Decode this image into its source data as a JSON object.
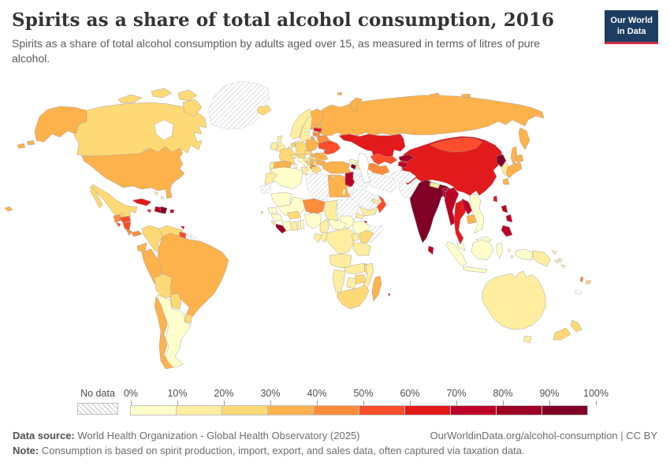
{
  "header": {
    "title": "Spirits as a share of total alcohol consumption, 2016",
    "subtitle": "Spirits as a share of total alcohol consumption by adults aged over 15, as measured in terms of litres of pure alcohol."
  },
  "logo": {
    "line1": "Our World",
    "line2": "in Data"
  },
  "legend": {
    "no_data_label": "No data",
    "tick_labels": [
      "0%",
      "10%",
      "20%",
      "30%",
      "40%",
      "50%",
      "60%",
      "70%",
      "80%",
      "90%",
      "100%"
    ]
  },
  "footer": {
    "data_source_label": "Data source:",
    "data_source_text": " World Health Organization - Global Health Observatory (2025)",
    "link_text": "OurWorldinData.org/alcohol-consumption | CC BY",
    "note_label": "Note:",
    "note_text": " Consumption is based on spirit production, import, export, and sales data, often captured via taxation data."
  },
  "chart_data": {
    "type": "choropleth",
    "title": "Spirits as a share of total alcohol consumption, 2016",
    "unit": "%",
    "bins": [
      0,
      10,
      20,
      30,
      40,
      50,
      60,
      70,
      80,
      90,
      100
    ],
    "colors": [
      "#ffffcc",
      "#ffeda0",
      "#fed976",
      "#feb24c",
      "#fd8d3c",
      "#fc4e2a",
      "#e31a1c",
      "#bd0026",
      "#9e0025",
      "#800026"
    ],
    "no_data_style": "diagonal-hatch",
    "values": {
      "canada": 25,
      "united-states": 35,
      "greenland": null,
      "mexico": 25,
      "guatemala": 45,
      "belize": 25,
      "honduras": 55,
      "el-salvador": 55,
      "nicaragua": 55,
      "costa-rica": 45,
      "panama": 45,
      "cuba": 65,
      "jamaica": 65,
      "haiti": 75,
      "dominican-republic": 95,
      "puerto-rico": 75,
      "bahamas": 15,
      "trinidad-and-tobago": 65,
      "colombia": 25,
      "venezuela": 25,
      "guyana": 55,
      "suriname": null,
      "french-guiana": null,
      "ecuador": 35,
      "peru": 35,
      "brazil": 35,
      "bolivia": 25,
      "paraguay": 25,
      "uruguay": 25,
      "argentina": 5,
      "chile": 35,
      "iceland": 25,
      "united-kingdom": 15,
      "ireland": 15,
      "norway": 15,
      "sweden": 15,
      "finland": 35,
      "denmark": 15,
      "germany": 25,
      "netherlands": 25,
      "belgium": 15,
      "france": 25,
      "spain": 35,
      "portugal": 15,
      "italy": 5,
      "switzerland": 15,
      "austria": 25,
      "czechia": 25,
      "poland": 35,
      "slovakia": 35,
      "hungary": 25,
      "romania": 35,
      "bulgaria": 35,
      "serbia": 35,
      "croatia": 15,
      "bosnia-and-herzegovina": 25,
      "albania": 45,
      "north-macedonia": 45,
      "greece": 25,
      "moldova": 55,
      "ukraine": 55,
      "belarus": 45,
      "estonia": 35,
      "latvia": 65,
      "lithuania": 45,
      "russia": 35,
      "turkey": 35,
      "georgia": 5,
      "armenia": 95,
      "azerbaijan": 15,
      "cyprus": 15,
      "syria": 75,
      "israel": 15,
      "jordan": null,
      "iraq": null,
      "saudi-arabia": null,
      "yemen": 15,
      "oman": 55,
      "united-arab-emirates": 15,
      "iran": null,
      "afghanistan": null,
      "pakistan": null,
      "kazakhstan": 65,
      "uzbekistan": 55,
      "turkmenistan": 45,
      "kyrgyzstan": 85,
      "tajikistan": 75,
      "mongolia": 55,
      "china": 65,
      "north-korea": 95,
      "south-korea": 15,
      "japan": 35,
      "taiwan": 65,
      "india": 95,
      "nepal": 15,
      "bhutan": 75,
      "bangladesh": 85,
      "sri-lanka": 75,
      "myanmar": 75,
      "thailand": 65,
      "laos": 75,
      "cambodia": 35,
      "vietnam": 5,
      "malaysia": 5,
      "indonesia": 5,
      "philippines": 75,
      "papua-new-guinea": 15,
      "australia": 15,
      "new-zealand": 25,
      "fiji": 25,
      "vanuatu": 45,
      "solomon-islands": 15,
      "new-caledonia": null,
      "morocco": 15,
      "western-sahara": null,
      "algeria": 5,
      "tunisia": 15,
      "libya": null,
      "egypt": 35,
      "mauritania": 5,
      "mali": 5,
      "senegal": 5,
      "guinea": 5,
      "sierra-leone": 15,
      "liberia": 85,
      "cote-divoire": 5,
      "ghana": 15,
      "togo": 5,
      "benin": 5,
      "burkina-faso": 25,
      "niger": 45,
      "chad": 15,
      "nigeria": 5,
      "cameroon": 15,
      "central-african-republic": 5,
      "south-sudan": 5,
      "sudan": null,
      "eritrea": 15,
      "djibouti": 65,
      "ethiopia": 5,
      "somalia": null,
      "kenya": 25,
      "uganda": 15,
      "tanzania": 15,
      "democratic-republic-of-congo": 15,
      "congo": 15,
      "gabon": 15,
      "angola": 15,
      "zambia": 15,
      "malawi": 25,
      "mozambique": 15,
      "zimbabwe": 25,
      "botswana": 15,
      "namibia": 15,
      "south-africa": 25,
      "madagascar": 35,
      "mauritius": 65,
      "cape-verde": 15
    }
  }
}
